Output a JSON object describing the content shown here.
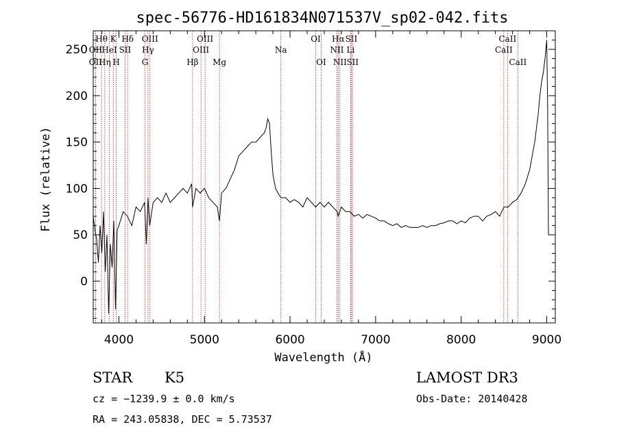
{
  "chart_data": {
    "type": "line",
    "title": "spec-56776-HD161834N071537V_sp02-042.fits",
    "xlabel": "Wavelength (Å)",
    "ylabel": "Flux (relative)",
    "xlim": [
      3700,
      9100
    ],
    "ylim": [
      -45,
      270
    ],
    "x_ticks": [
      4000,
      5000,
      6000,
      7000,
      8000,
      9000
    ],
    "y_ticks": [
      0,
      50,
      100,
      150,
      200,
      250
    ],
    "series": [
      {
        "x": [
          3700,
          3720,
          3740,
          3760,
          3780,
          3800,
          3820,
          3840,
          3860,
          3880,
          3900,
          3920,
          3940,
          3960,
          3980,
          4000,
          4050,
          4100,
          4150,
          4200,
          4250,
          4300,
          4320,
          4340,
          4360,
          4400,
          4450,
          4500,
          4550,
          4600,
          4650,
          4700,
          4750,
          4800,
          4850,
          4861,
          4900,
          4950,
          5000,
          5050,
          5100,
          5150,
          5175,
          5200,
          5250,
          5300,
          5350,
          5400,
          5450,
          5500,
          5550,
          5600,
          5650,
          5700,
          5720,
          5740,
          5760,
          5780,
          5800,
          5830,
          5860,
          5893,
          5950,
          6000,
          6050,
          6100,
          6150,
          6200,
          6250,
          6300,
          6350,
          6400,
          6450,
          6500,
          6550,
          6563,
          6600,
          6650,
          6700,
          6750,
          6800,
          6850,
          6900,
          6950,
          7000,
          7050,
          7100,
          7150,
          7200,
          7250,
          7300,
          7350,
          7400,
          7450,
          7500,
          7550,
          7600,
          7650,
          7700,
          7750,
          7800,
          7850,
          7900,
          7950,
          8000,
          8050,
          8100,
          8150,
          8200,
          8250,
          8300,
          8350,
          8400,
          8450,
          8500,
          8550,
          8600,
          8650,
          8700,
          8750,
          8800,
          8820,
          8840,
          8860,
          8880,
          8900,
          8920,
          8940,
          8960,
          8980,
          9000,
          9010,
          9020
        ],
        "y": [
          70,
          55,
          45,
          20,
          60,
          30,
          75,
          10,
          50,
          -35,
          40,
          15,
          65,
          -30,
          55,
          60,
          75,
          70,
          60,
          80,
          75,
          85,
          40,
          90,
          60,
          85,
          90,
          85,
          95,
          85,
          90,
          95,
          100,
          95,
          105,
          80,
          100,
          95,
          100,
          90,
          85,
          80,
          65,
          95,
          100,
          110,
          120,
          135,
          140,
          145,
          150,
          150,
          155,
          160,
          165,
          175,
          170,
          140,
          115,
          100,
          95,
          90,
          90,
          85,
          88,
          85,
          80,
          90,
          85,
          80,
          85,
          80,
          85,
          80,
          75,
          70,
          80,
          75,
          75,
          70,
          72,
          68,
          72,
          70,
          68,
          65,
          65,
          62,
          60,
          62,
          58,
          60,
          58,
          58,
          58,
          60,
          58,
          60,
          60,
          62,
          63,
          65,
          65,
          62,
          65,
          63,
          68,
          70,
          70,
          65,
          70,
          72,
          75,
          70,
          80,
          80,
          85,
          88,
          95,
          105,
          120,
          130,
          140,
          150,
          165,
          180,
          200,
          215,
          225,
          240,
          260,
          190,
          50
        ]
      }
    ],
    "line_markers": [
      {
        "name": "Hθ",
        "x": 3797,
        "row": 1
      },
      {
        "name": "OII",
        "x": 3727,
        "row": 2
      },
      {
        "name": "OII",
        "x": 3727,
        "row": 3
      },
      {
        "name": "Hη",
        "x": 3835,
        "row": 3
      },
      {
        "name": "HeI",
        "x": 3889,
        "row": 2
      },
      {
        "name": "K",
        "x": 3934,
        "row": 1
      },
      {
        "name": "SII",
        "x": 4072,
        "row": 2
      },
      {
        "name": "H",
        "x": 3969,
        "row": 3
      },
      {
        "name": "Hδ",
        "x": 4102,
        "row": 1
      },
      {
        "name": "OIII",
        "x": 4363,
        "row": 1
      },
      {
        "name": "Hγ",
        "x": 4340,
        "row": 2
      },
      {
        "name": "G",
        "x": 4305,
        "row": 3
      },
      {
        "name": "OIII",
        "x": 5007,
        "row": 1
      },
      {
        "name": "OIII",
        "x": 4959,
        "row": 2
      },
      {
        "name": "Hβ",
        "x": 4861,
        "row": 3
      },
      {
        "name": "Mg",
        "x": 5175,
        "row": 3
      },
      {
        "name": "Na",
        "x": 5893,
        "row": 2
      },
      {
        "name": "OI",
        "x": 6300,
        "row": 1
      },
      {
        "name": "OI",
        "x": 6364,
        "row": 3
      },
      {
        "name": "Hα",
        "x": 6563,
        "row": 1
      },
      {
        "name": "SII",
        "x": 6716,
        "row": 1
      },
      {
        "name": "NII",
        "x": 6548,
        "row": 2
      },
      {
        "name": "Li",
        "x": 6708,
        "row": 2
      },
      {
        "name": "NII",
        "x": 6583,
        "row": 3
      },
      {
        "name": "SII",
        "x": 6731,
        "row": 3
      },
      {
        "name": "CaII",
        "x": 8542,
        "row": 1
      },
      {
        "name": "CaII",
        "x": 8498,
        "row": 2
      },
      {
        "name": "CaII",
        "x": 8662,
        "row": 3
      }
    ]
  },
  "info": {
    "object_class": "STAR",
    "subclass": "K5",
    "survey": "LAMOST DR3",
    "cz": "cz = −1239.9 ± 0.0 km/s",
    "obs_date": "Obs-Date: 20140428",
    "coords": "RA = 243.05838, DEC =   5.73537"
  },
  "colors": {
    "spectrum": "#000000",
    "marker_line": "#b22222",
    "axes": "#000000"
  }
}
